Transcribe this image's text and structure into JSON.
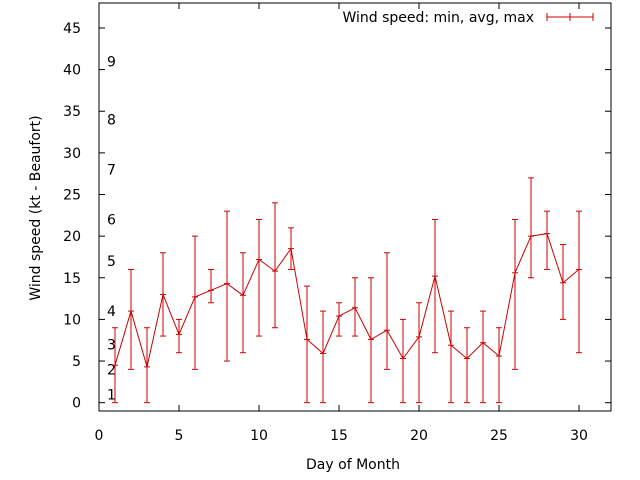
{
  "chart_data": {
    "type": "line",
    "xlabel": "Day of Month",
    "ylabel": "Wind speed (kt - Beaufort)",
    "xlim": [
      0,
      32
    ],
    "ylim": [
      -1,
      48
    ],
    "xticks": [
      0,
      5,
      10,
      15,
      20,
      25,
      30
    ],
    "yticks": [
      0,
      5,
      10,
      15,
      20,
      25,
      30,
      35,
      40,
      45
    ],
    "grid": false,
    "legend_position": "top-right",
    "series": [
      {
        "name": "Wind speed: min, avg, max",
        "color": "#cc0000",
        "points": [
          {
            "x": 1,
            "avg": 4.5,
            "min": 0,
            "max": 9
          },
          {
            "x": 2,
            "avg": 11,
            "min": 4,
            "max": 16
          },
          {
            "x": 3,
            "avg": 4.3,
            "min": 0,
            "max": 9
          },
          {
            "x": 4,
            "avg": 13,
            "min": 8,
            "max": 18
          },
          {
            "x": 5,
            "avg": 8.2,
            "min": 6,
            "max": 10
          },
          {
            "x": 6,
            "avg": 12.7,
            "min": 4,
            "max": 20
          },
          {
            "x": 7,
            "avg": 13.5,
            "min": 12,
            "max": 16
          },
          {
            "x": 8,
            "avg": 14.3,
            "min": 5,
            "max": 23
          },
          {
            "x": 9,
            "avg": 12.9,
            "min": 6,
            "max": 18
          },
          {
            "x": 10,
            "avg": 17.2,
            "min": 8,
            "max": 22
          },
          {
            "x": 11,
            "avg": 15.8,
            "min": 9,
            "max": 24
          },
          {
            "x": 12,
            "avg": 18.5,
            "min": 16,
            "max": 21
          },
          {
            "x": 13,
            "avg": 7.6,
            "min": 0,
            "max": 14
          },
          {
            "x": 14,
            "avg": 5.9,
            "min": 0,
            "max": 11
          },
          {
            "x": 15,
            "avg": 10.4,
            "min": 8,
            "max": 12
          },
          {
            "x": 16,
            "avg": 11.4,
            "min": 8,
            "max": 15
          },
          {
            "x": 17,
            "avg": 7.6,
            "min": 0,
            "max": 15
          },
          {
            "x": 18,
            "avg": 8.7,
            "min": 4,
            "max": 18
          },
          {
            "x": 19,
            "avg": 5.3,
            "min": 0,
            "max": 10
          },
          {
            "x": 20,
            "avg": 7.9,
            "min": 0,
            "max": 12
          },
          {
            "x": 21,
            "avg": 15.2,
            "min": 6,
            "max": 22
          },
          {
            "x": 22,
            "avg": 6.9,
            "min": 0,
            "max": 11
          },
          {
            "x": 23,
            "avg": 5.3,
            "min": 0,
            "max": 9
          },
          {
            "x": 24,
            "avg": 7.2,
            "min": 0,
            "max": 11
          },
          {
            "x": 25,
            "avg": 5.6,
            "min": 0,
            "max": 9
          },
          {
            "x": 26,
            "avg": 15.6,
            "min": 4,
            "max": 22
          },
          {
            "x": 27,
            "avg": 20,
            "min": 15,
            "max": 27
          },
          {
            "x": 28,
            "avg": 20.3,
            "min": 16,
            "max": 23
          },
          {
            "x": 29,
            "avg": 14.4,
            "min": 10,
            "max": 19
          },
          {
            "x": 30,
            "avg": 16,
            "min": 6,
            "max": 23
          }
        ]
      }
    ],
    "beaufort_labels": [
      {
        "label": "1",
        "y": 1
      },
      {
        "label": "2",
        "y": 4
      },
      {
        "label": "3",
        "y": 7
      },
      {
        "label": "4",
        "y": 11
      },
      {
        "label": "5",
        "y": 17
      },
      {
        "label": "6",
        "y": 22
      },
      {
        "label": "7",
        "y": 28
      },
      {
        "label": "8",
        "y": 34
      },
      {
        "label": "9",
        "y": 41
      }
    ]
  }
}
